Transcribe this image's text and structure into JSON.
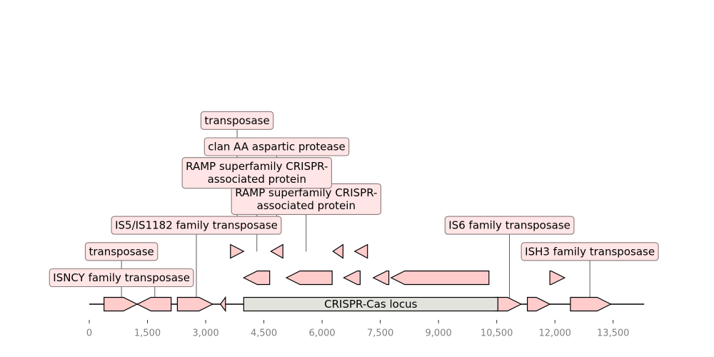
{
  "colors": {
    "feature_fill": "#ffcccc",
    "locus_fill": "#e3e3dd",
    "label_fill": "#ffe5e5",
    "label_border": "#8c7a7a",
    "stroke": "#000000",
    "axis_text": "#808080"
  },
  "sequence": {
    "start": 0,
    "end": 14300
  },
  "axis": {
    "ticks": [
      {
        "value": 0,
        "label": "0"
      },
      {
        "value": 1500,
        "label": "1,500"
      },
      {
        "value": 3000,
        "label": "3,000"
      },
      {
        "value": 4500,
        "label": "4,500"
      },
      {
        "value": 6000,
        "label": "6,000"
      },
      {
        "value": 7500,
        "label": "7,500"
      },
      {
        "value": 9000,
        "label": "9,000"
      },
      {
        "value": 10500,
        "label": "10,500"
      },
      {
        "value": 12000,
        "label": "12,000"
      },
      {
        "value": 13500,
        "label": "13,500"
      }
    ]
  },
  "locus": {
    "label": "CRISPR-Cas locus",
    "start": 3980,
    "end": 10530
  },
  "features": [
    {
      "name": "gene-1",
      "start": 380,
      "end": 1230,
      "strand": 1,
      "level": 0
    },
    {
      "name": "gene-2",
      "start": 1240,
      "end": 2110,
      "strand": -1,
      "level": 0
    },
    {
      "name": "gene-3",
      "start": 2270,
      "end": 3180,
      "strand": 1,
      "level": 0
    },
    {
      "name": "gene-4",
      "start": 3380,
      "end": 3510,
      "strand": -1,
      "level": 0
    },
    {
      "name": "gene-5",
      "start": 10470,
      "end": 11130,
      "strand": 1,
      "level": 0
    },
    {
      "name": "gene-6",
      "start": 11290,
      "end": 11870,
      "strand": 1,
      "level": 0
    },
    {
      "name": "gene-7",
      "start": 12400,
      "end": 13440,
      "strand": 1,
      "level": 0
    },
    {
      "name": "gene-8",
      "start": 3980,
      "end": 4650,
      "strand": -1,
      "level": 1
    },
    {
      "name": "gene-9",
      "start": 5080,
      "end": 6260,
      "strand": -1,
      "level": 1
    },
    {
      "name": "gene-10",
      "start": 6560,
      "end": 6980,
      "strand": -1,
      "level": 1
    },
    {
      "name": "gene-11",
      "start": 7320,
      "end": 7720,
      "strand": -1,
      "level": 1
    },
    {
      "name": "gene-12",
      "start": 7780,
      "end": 10300,
      "strand": -1,
      "level": 1
    },
    {
      "name": "gene-13",
      "start": 11870,
      "end": 12250,
      "strand": 1,
      "level": 1
    },
    {
      "name": "gene-14",
      "start": 3640,
      "end": 3980,
      "strand": 1,
      "level": 2
    },
    {
      "name": "gene-15",
      "start": 4680,
      "end": 4990,
      "strand": -1,
      "level": 2
    },
    {
      "name": "gene-16",
      "start": 6280,
      "end": 6540,
      "strand": -1,
      "level": 2
    },
    {
      "name": "gene-17",
      "start": 6840,
      "end": 7170,
      "strand": -1,
      "level": 2
    }
  ],
  "annotations": [
    {
      "text": [
        "ISNCY family transposase"
      ],
      "anchor": 830,
      "level": 0
    },
    {
      "text": [
        "transposase"
      ],
      "anchor": 830,
      "level": 1
    },
    {
      "text": [
        "IS5/IS1182 family transposase"
      ],
      "anchor": 2760,
      "level": 2
    },
    {
      "text": [
        "RAMP superfamily CRISPR-",
        "associated protein"
      ],
      "anchor": 5590,
      "level": 3
    },
    {
      "text": [
        "RAMP superfamily CRISPR-",
        "associated protein"
      ],
      "anchor": 4320,
      "level": 4
    },
    {
      "text": [
        "clan AA aspartic protease"
      ],
      "anchor": 4830,
      "level": 5
    },
    {
      "text": [
        "transposase"
      ],
      "anchor": 3810,
      "level": 6
    },
    {
      "text": [
        "IS6 family transposase"
      ],
      "anchor": 10830,
      "level": 2
    },
    {
      "text": [
        "ISH3 family transposase"
      ],
      "anchor": 12900,
      "level": 1
    }
  ],
  "leader_lines": [
    {
      "x": 830,
      "from_level": -1,
      "to_level": 1
    },
    {
      "x": 1690,
      "from_level": -1,
      "to_level": 0
    },
    {
      "x": 2760,
      "from_level": -1,
      "to_level": 2
    },
    {
      "x": 3810,
      "from_level": 2,
      "to_level": 6
    },
    {
      "x": 4320,
      "from_level": 1,
      "to_level": 4
    },
    {
      "x": 4830,
      "from_level": 2,
      "to_level": 5
    },
    {
      "x": 5590,
      "from_level": 1,
      "to_level": 3
    },
    {
      "x": 10830,
      "from_level": -1,
      "to_level": 2
    },
    {
      "x": 12900,
      "from_level": -1,
      "to_level": 1
    }
  ]
}
